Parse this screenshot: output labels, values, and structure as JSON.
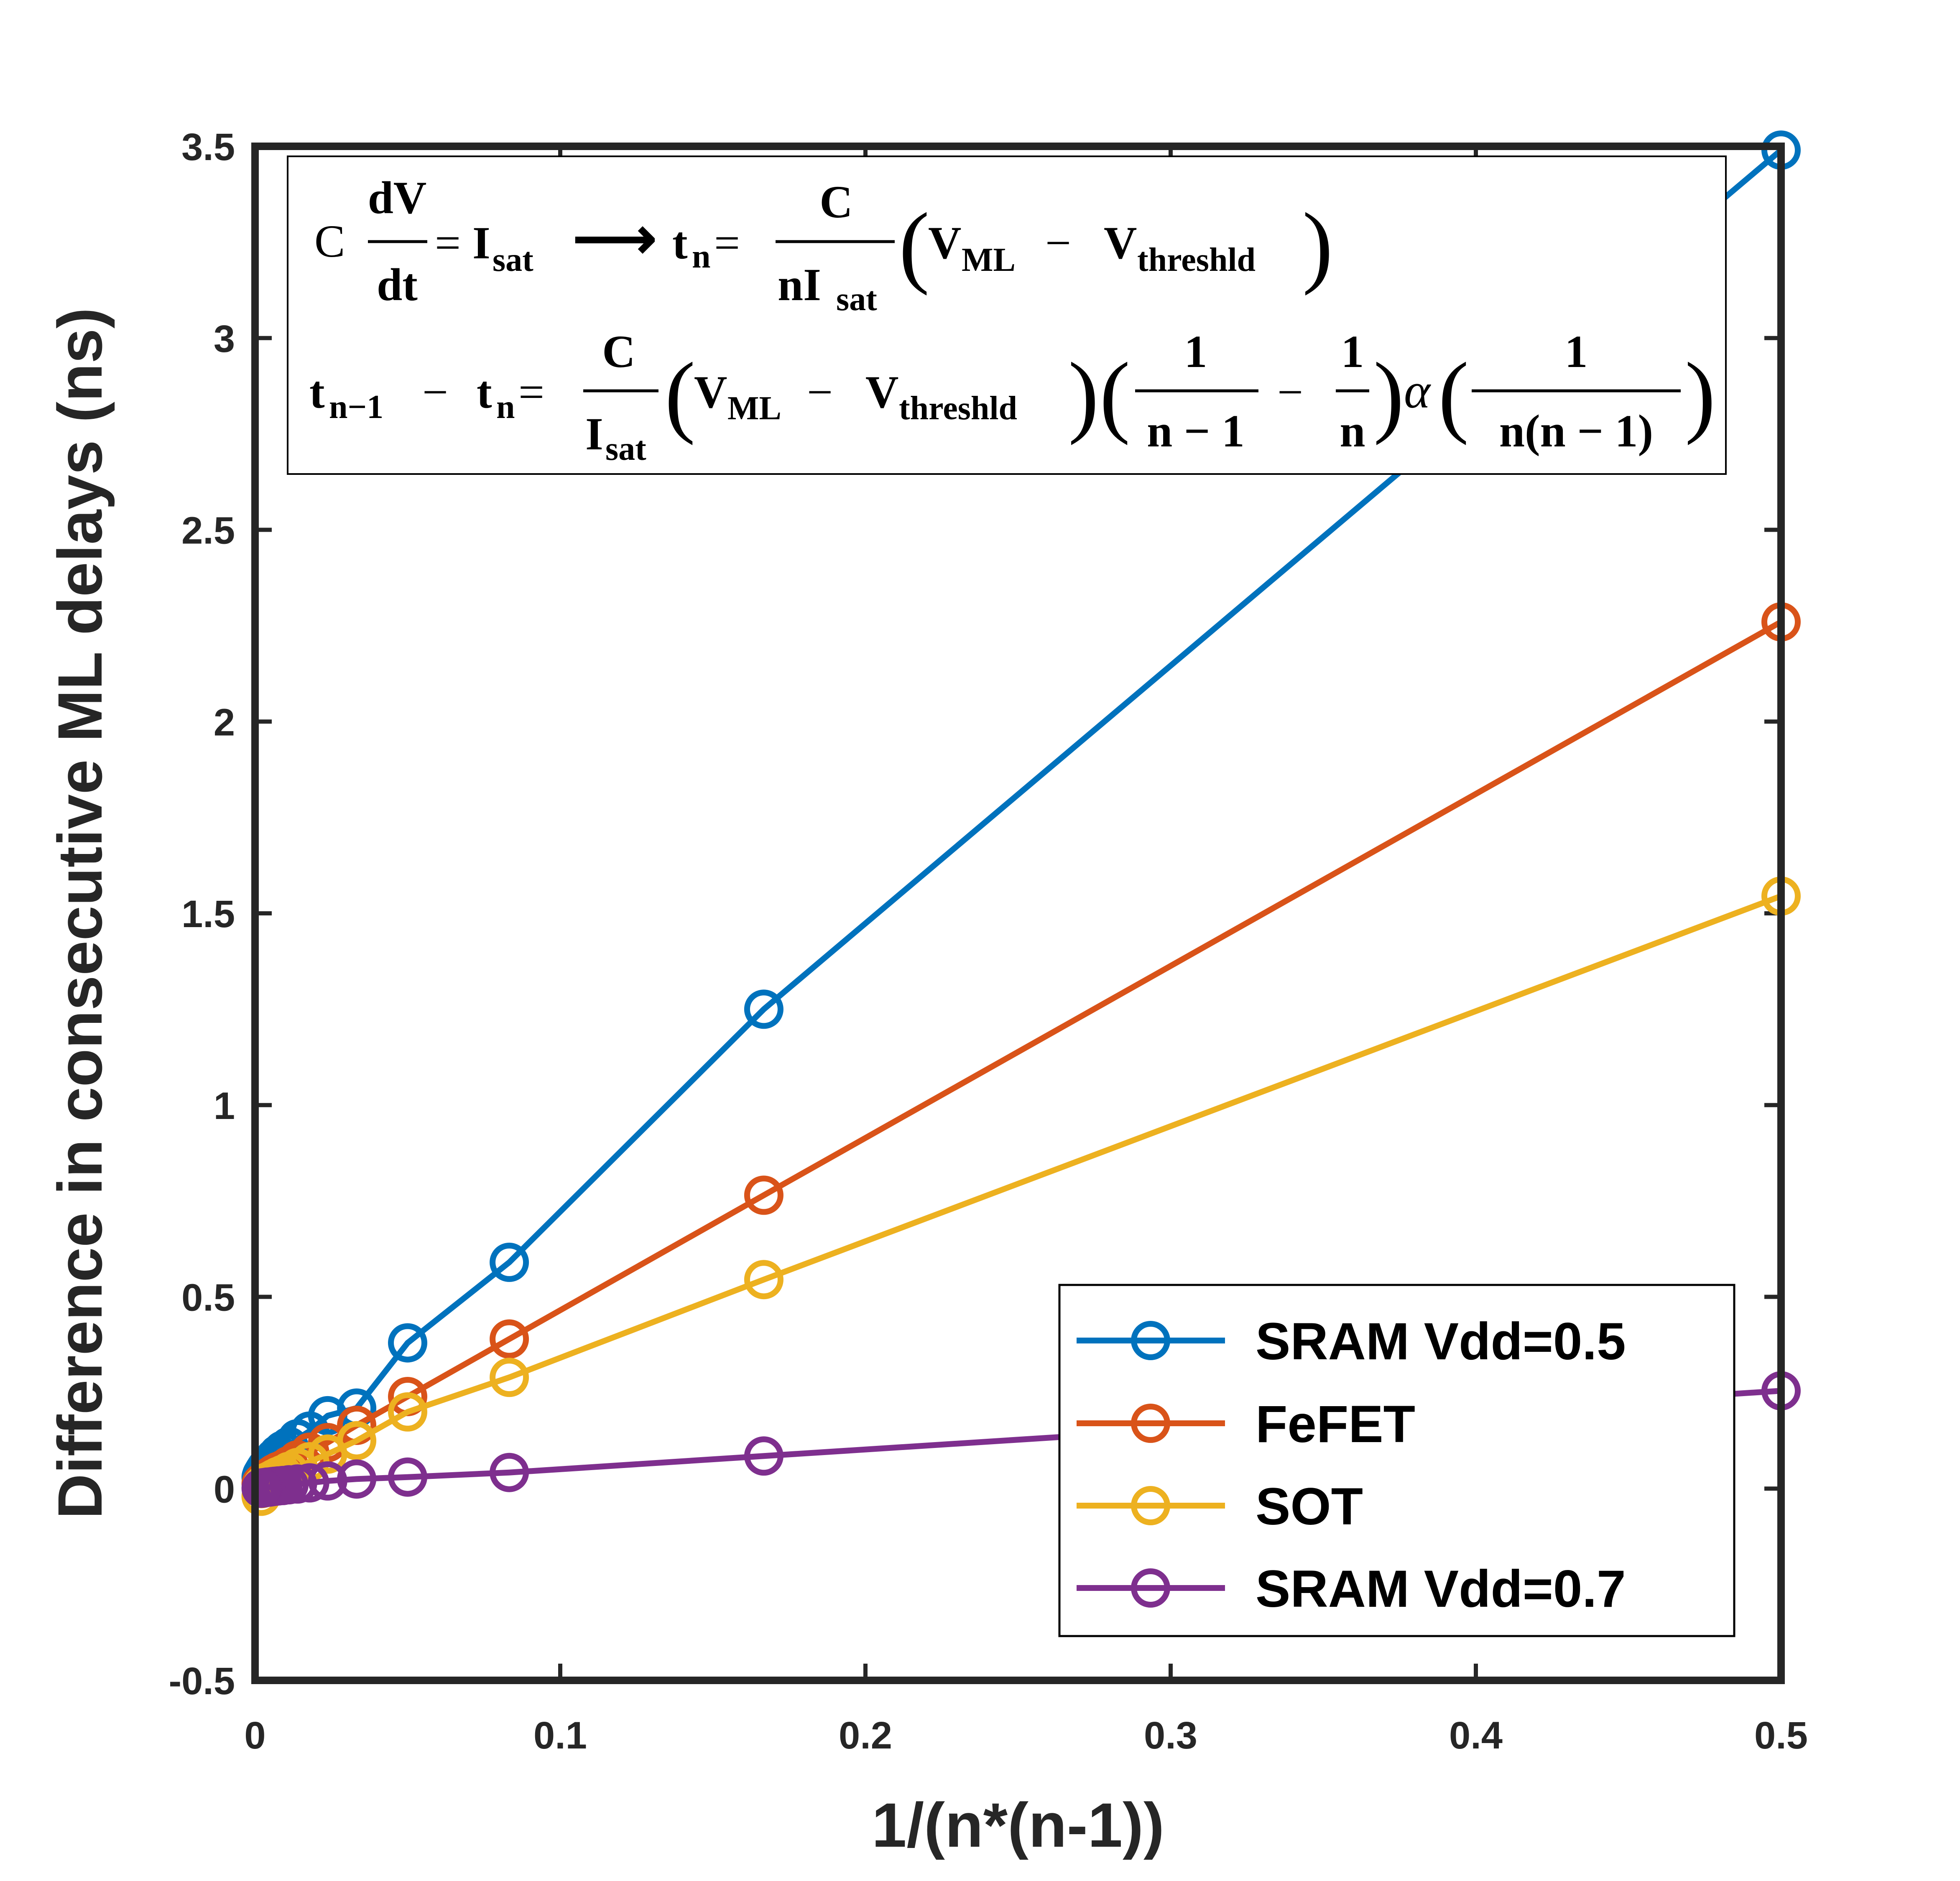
{
  "chart_data": {
    "type": "line",
    "xlabel": "1/(n*(n-1))",
    "ylabel": "Difference in consecutive ML delays (ns)",
    "xlim": [
      0,
      0.5
    ],
    "ylim": [
      -0.5,
      3.5
    ],
    "xticks": [
      0,
      0.1,
      0.2,
      0.3,
      0.4,
      0.5
    ],
    "xtick_labels": [
      "0",
      "0.1",
      "0.2",
      "0.3",
      "0.4",
      "0.5"
    ],
    "yticks": [
      -0.5,
      0,
      0.5,
      1,
      1.5,
      2,
      2.5,
      3,
      3.5
    ],
    "ytick_labels": [
      "-0.5",
      "0",
      "0.5",
      "1",
      "1.5",
      "2",
      "2.5",
      "3",
      "3.5"
    ],
    "grid": false,
    "legend_position": "bottom-right",
    "x": [
      0.5,
      0.1667,
      0.0833,
      0.05,
      0.0333,
      0.0238,
      0.0179,
      0.0139,
      0.0111,
      0.0091,
      0.0076,
      0.0064,
      0.0055,
      0.0048,
      0.0042,
      0.0037,
      0.0033,
      0.0029,
      0.0026,
      0.0024,
      0.0022,
      0.002
    ],
    "series": [
      {
        "name": "SRAM Vdd=0.5",
        "color": "#0072BD",
        "values": [
          3.49,
          1.25,
          0.59,
          0.38,
          0.21,
          0.19,
          0.15,
          0.13,
          0.11,
          0.1,
          0.09,
          0.08,
          0.07,
          0.065,
          0.06,
          0.055,
          0.05,
          0.045,
          0.04,
          0.038,
          0.035,
          0.03
        ]
      },
      {
        "name": "FeFET",
        "color": "#D95319",
        "values": [
          2.26,
          0.765,
          0.39,
          0.24,
          0.165,
          0.12,
          0.095,
          0.075,
          0.06,
          0.05,
          0.045,
          0.04,
          0.035,
          0.03,
          0.028,
          0.025,
          0.022,
          0.02,
          0.018,
          0.016,
          0.015,
          0.013
        ]
      },
      {
        "name": "SOT",
        "color": "#EDB120",
        "values": [
          1.545,
          0.545,
          0.29,
          0.2,
          0.125,
          0.09,
          0.07,
          0.055,
          0.045,
          0.037,
          0.032,
          0.027,
          0.023,
          0.02,
          0.018,
          0.016,
          0.014,
          0.012,
          0.01,
          0.008,
          0.0,
          -0.02
        ]
      },
      {
        "name": "SRAM Vdd=0.7",
        "color": "#7E2F8E",
        "values": [
          0.255,
          0.085,
          0.042,
          0.03,
          0.025,
          0.02,
          0.015,
          0.012,
          0.01,
          0.008,
          0.007,
          0.006,
          0.005,
          0.004,
          0.004,
          0.003,
          0.003,
          0.002,
          0.002,
          0.002,
          0.001,
          0.001
        ]
      }
    ],
    "annotation": {
      "line1": {
        "c": "C",
        "dv": "dV",
        "dt": "dt",
        "eq": "=",
        "i": "I",
        "sat": "sat",
        "arrow": "⟶",
        "t": "t",
        "n": "n",
        "eq2": "=",
        "frac_num": "C",
        "frac_den_n": "nI",
        "frac_den_sat": "sat",
        "lparen": "(",
        "v1": "V",
        "ml": "ML",
        "minus": "−",
        "v2": "V",
        "threshld": "threshld",
        "rparen": ")"
      },
      "line2": {
        "t1": "t",
        "nm1": "n−1",
        "minus": "−",
        "t2": "t",
        "n": "n",
        "eq": "=",
        "frac_num": "C",
        "frac_den_i": "I",
        "frac_den_sat": "sat",
        "lp1": "(",
        "v1": "V",
        "ml": "ML",
        "minus2": "−",
        "v2": "V",
        "threshld": "threshld",
        "rp1": ")",
        "lp2": "(",
        "one_a": "1",
        "den_a": "n − 1",
        "minus3": "−",
        "one_b": "1",
        "den_b": "n",
        "rp2": ")",
        "alpha": "α",
        "lp3": "(",
        "one_c": "1",
        "den_c": "n(n − 1)",
        "rp3": ")"
      }
    }
  }
}
